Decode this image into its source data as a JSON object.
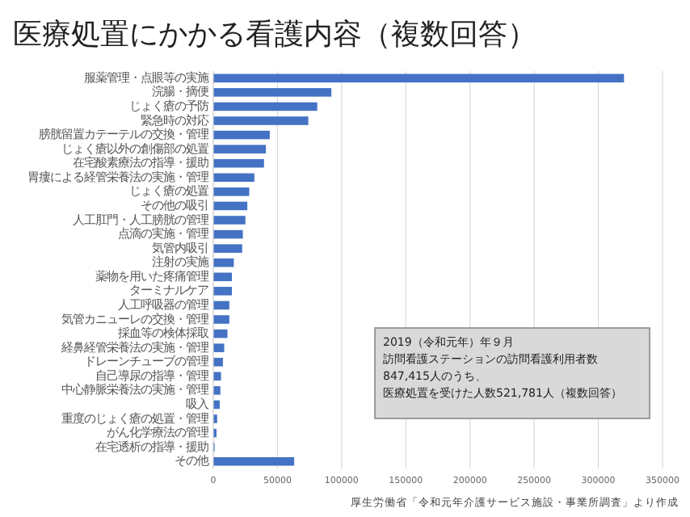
{
  "chart_data": {
    "type": "bar",
    "orientation": "horizontal",
    "title": "医療処置にかかる看護内容（複数回答）",
    "categories": [
      "服薬管理・点眼等の実施",
      "浣腸・摘便",
      "じょく瘡の予防",
      "緊急時の対応",
      "膀胱留置カテーテルの交換・管理",
      "じょく瘡以外の創傷部の処置",
      "在宅酸素療法の指導・援助",
      "胃瘻による経管栄養法の実施・管理",
      "じょく瘡の処置",
      "その他の吸引",
      "人工肛門・人工膀胱の管理",
      "点滴の実施・管理",
      "気管内吸引",
      "注射の実施",
      "薬物を用いた疼痛管理",
      "ターミナルケア",
      "人工呼吸器の管理",
      "気管カニューレの交換・管理",
      "採血等の検体採取",
      "経鼻経管栄養法の実施・管理",
      "ドレーンチューブの管理",
      "自己導尿の指導・管理",
      "中心静脈栄養法の実施・管理",
      "吸入",
      "重度のじょく瘡の処置・管理",
      "がん化学療法の管理",
      "在宅透析の指導・援助",
      "その他"
    ],
    "values": [
      320000,
      92000,
      81000,
      74000,
      44000,
      41000,
      39500,
      32000,
      28000,
      26500,
      25000,
      23000,
      22500,
      16000,
      14500,
      14500,
      12500,
      12500,
      11000,
      8500,
      7500,
      6000,
      5500,
      5000,
      3000,
      2500,
      1000,
      63000
    ],
    "color": "#4472c4",
    "xlim": [
      0,
      350000
    ],
    "xticks": [
      0,
      50000,
      100000,
      150000,
      200000,
      250000,
      300000,
      350000
    ],
    "grid": "x",
    "annotations": [
      "2019（令和元年）年９月",
      "訪問看護ステーションの訪問看護利用者数",
      "847,415人のうち、",
      "医療処置を受けた人数521,781人（複数回答）",
      "厚生労働省「令和元年介護サービス施設・事業所調査」より作成"
    ]
  }
}
